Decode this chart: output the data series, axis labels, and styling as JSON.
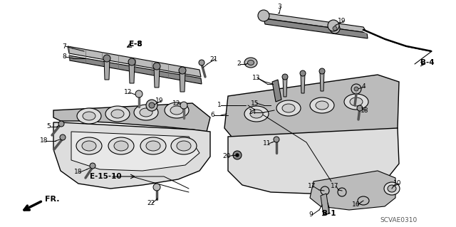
{
  "bg_color": "#ffffff",
  "diagram_code": "SCVAE0310",
  "ref_labels": {
    "E8": "E-8",
    "E1510": "E-15-10",
    "B4": "B-4",
    "B1": "B-1"
  }
}
